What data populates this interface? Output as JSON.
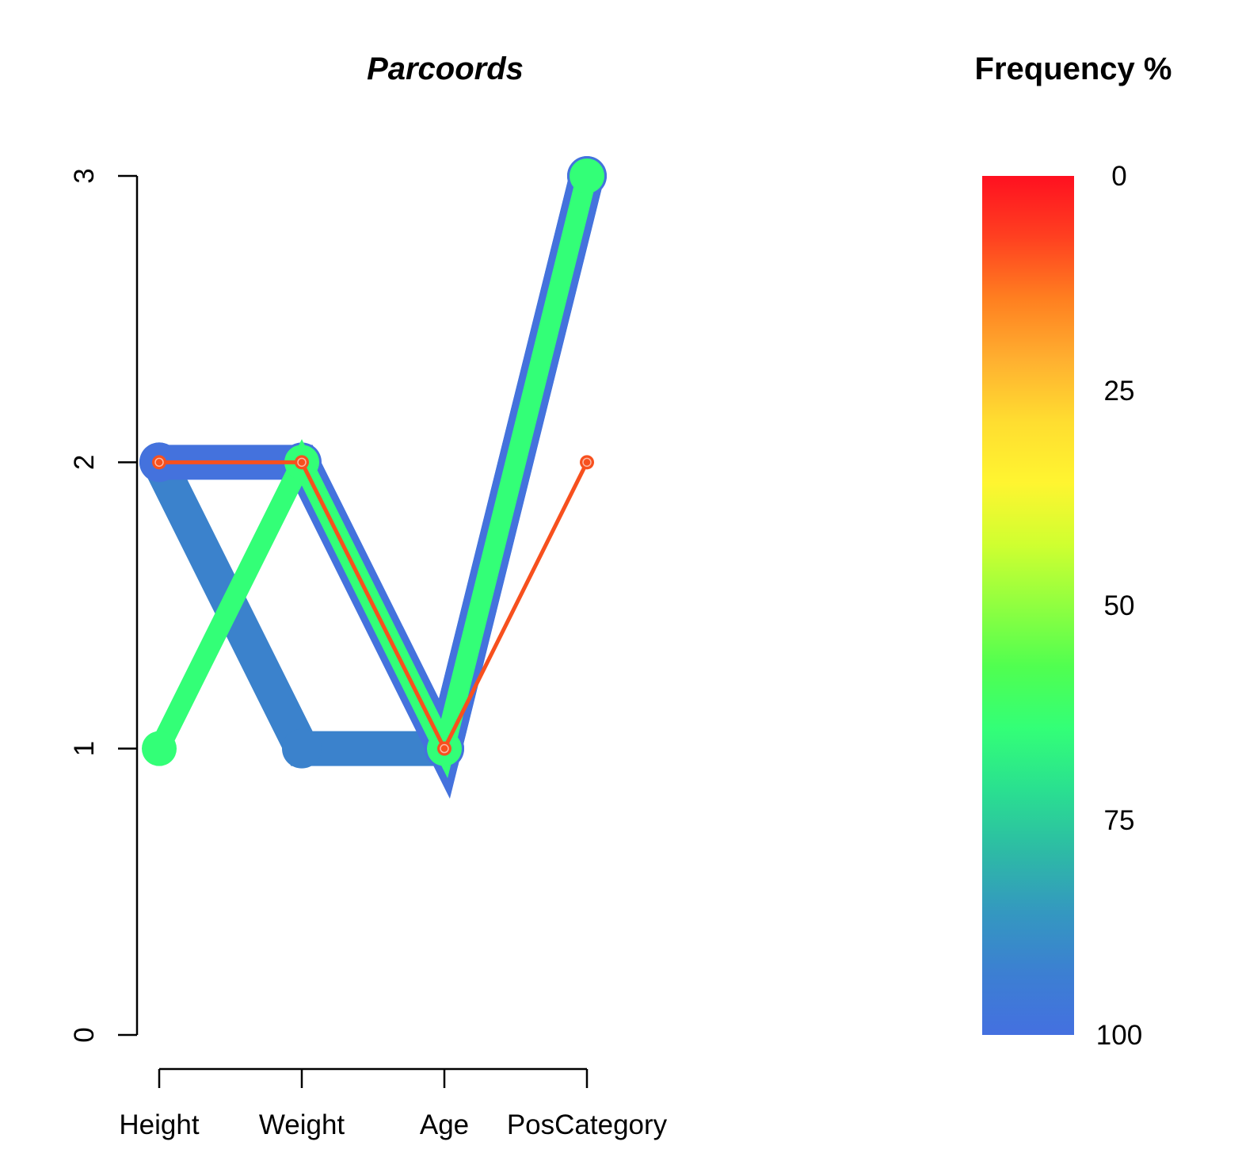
{
  "chart_data": {
    "type": "parallel-coordinates",
    "title": "Parcoords",
    "dimensions": [
      "Height",
      "Weight",
      "Age",
      "PosCategory"
    ],
    "ylim": [
      0,
      3
    ],
    "yticks": [
      0,
      1,
      2,
      3
    ],
    "series": [
      {
        "values": [
          2,
          1,
          1,
          3
        ],
        "frequency": 95,
        "color": "#3B82CC",
        "line_weight": "heavy"
      },
      {
        "values": [
          2,
          2,
          1,
          3
        ],
        "frequency": 97,
        "color": "#4472DD",
        "line_weight": "heavy"
      },
      {
        "values": [
          1,
          2,
          1,
          3
        ],
        "frequency": 66,
        "color": "#33FF77",
        "line_weight": "medium"
      },
      {
        "values": [
          2,
          2,
          1,
          2
        ],
        "frequency": 12,
        "color": "#F7501E",
        "line_weight": "thin"
      }
    ],
    "legend": {
      "title": "Frequency %",
      "ticks": [
        0,
        25,
        50,
        75,
        100
      ],
      "range": [
        0,
        100
      ],
      "colors": [
        "#FF1020",
        "#FF4020",
        "#FF7F20",
        "#FFB030",
        "#FFDD30",
        "#FFF530",
        "#D0FF30",
        "#90FF40",
        "#50FF50",
        "#33FF77",
        "#2AE090",
        "#2DBBA5",
        "#3498C0",
        "#3C7FD2",
        "#4470E0"
      ],
      "placement": "right"
    }
  }
}
